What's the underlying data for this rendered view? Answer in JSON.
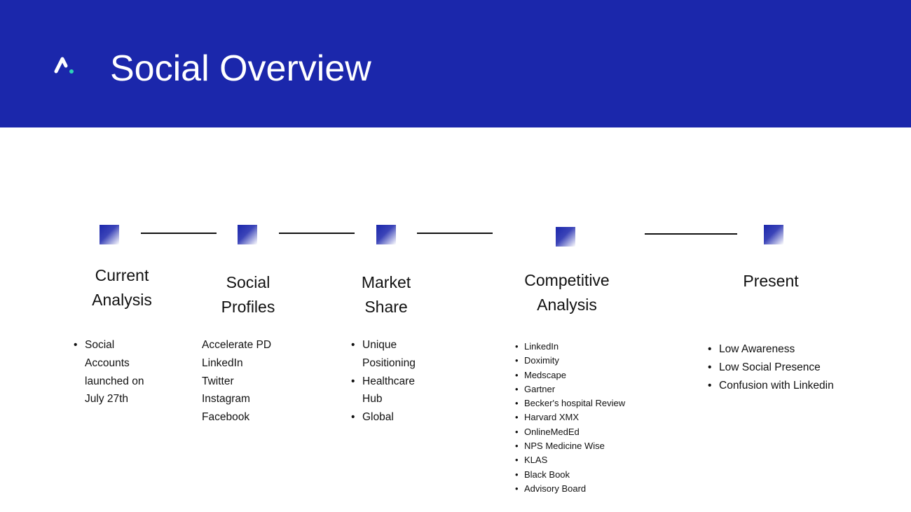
{
  "header": {
    "title": "Social Overview",
    "background": "#1b27ab",
    "logo_accent": "#2ed3b7"
  },
  "steps": [
    {
      "title_lines": [
        "Current",
        "Analysis"
      ],
      "items": [
        "Social Accounts launched on July 27th"
      ],
      "bulleted": true
    },
    {
      "title_lines": [
        "Social",
        "Profiles"
      ],
      "items": [
        "Accelerate PD",
        "LinkedIn",
        "Twitter",
        "Instagram",
        "Facebook"
      ],
      "bulleted": false
    },
    {
      "title_lines": [
        "Market",
        "Share"
      ],
      "items": [
        "Unique Positioning",
        "Healthcare Hub",
        "Global"
      ],
      "bulleted": true
    },
    {
      "title_lines": [
        "Competitive",
        "Analysis"
      ],
      "items": [
        "LinkedIn",
        "Doximity",
        "Medscape",
        "Gartner",
        "Becker's hospital Review",
        "Harvard XMX",
        "OnlineMedEd",
        "NPS Medicine Wise",
        "KLAS",
        "Black Book",
        "Advisory Board"
      ],
      "bulleted": true
    },
    {
      "title_lines": [
        "Present"
      ],
      "items": [
        "Low Awareness",
        "Low Social Presence",
        "Confusion with Linkedin"
      ],
      "bulleted": true
    }
  ]
}
